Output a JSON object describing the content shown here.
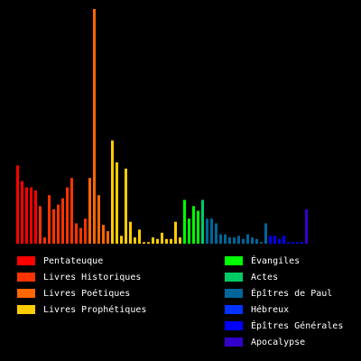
{
  "chart_data": {
    "type": "bar",
    "title": "",
    "xlabel": "",
    "ylabel": "",
    "grid": false,
    "legend_placement": "bottom",
    "ylim": [
      0,
      150
    ],
    "series": [
      {
        "name": "Pentateuque",
        "color": "#ff0000",
        "values": [
          50,
          40,
          36,
          36,
          34
        ]
      },
      {
        "name": "Livres Historiques",
        "color": "#ff3300",
        "values": [
          24,
          4,
          31,
          22,
          25,
          29,
          36,
          42,
          13,
          10,
          16
        ]
      },
      {
        "name": "Livres Poétiques",
        "color": "#ff6600",
        "values": [
          42,
          150,
          31,
          12,
          8
        ]
      },
      {
        "name": "Livres Prophétiques",
        "color": "#ffcc00",
        "values": [
          66,
          52,
          5,
          48,
          14,
          4,
          9,
          1,
          1,
          4,
          3,
          7,
          3,
          3,
          14,
          4
        ]
      },
      {
        "name": "Évangiles",
        "color": "#00ff00",
        "values": [
          28,
          16,
          24,
          21
        ]
      },
      {
        "name": "Actes",
        "color": "#00cc66",
        "values": [
          28
        ]
      },
      {
        "name": "Épîtres de Paul",
        "color": "#006699",
        "values": [
          16,
          16,
          13,
          6,
          6,
          4,
          4,
          5,
          3,
          6,
          4,
          3,
          1,
          13
        ]
      },
      {
        "name": "Épîtres Générales",
        "color": "#0000ff",
        "values": [
          5,
          5,
          3,
          5,
          1,
          1,
          1,
          1
        ]
      },
      {
        "name": "Apocalypse",
        "color": "#3300cc",
        "values": [
          22
        ]
      }
    ]
  },
  "legend": {
    "left": [
      {
        "label": "Pentateuque",
        "color": "#ff0000"
      },
      {
        "label": "Livres Historiques",
        "color": "#ff3300"
      },
      {
        "label": "Livres Poétiques",
        "color": "#ff6600"
      },
      {
        "label": "Livres Prophétiques",
        "color": "#ffcc00"
      }
    ],
    "right": [
      {
        "label": "Évangiles",
        "color": "#00ff00"
      },
      {
        "label": "Actes",
        "color": "#00cc66"
      },
      {
        "label": "Épîtres de Paul",
        "color": "#006699"
      },
      {
        "label": "Hébreux",
        "color": "#0033ff"
      },
      {
        "label": "Épîtres Générales",
        "color": "#0000ff"
      },
      {
        "label": "Apocalypse",
        "color": "#3300cc"
      }
    ]
  }
}
